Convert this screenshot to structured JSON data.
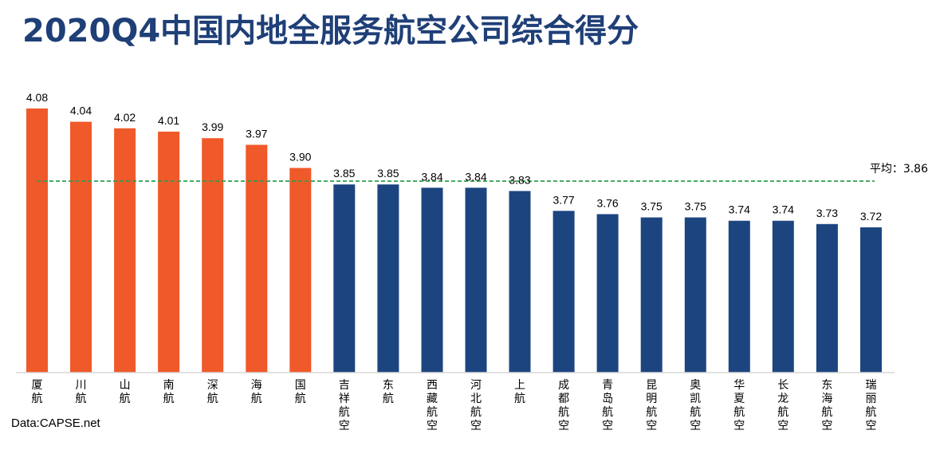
{
  "title": "2020Q4中国内地全服务航空公司综合得分",
  "source": "Data:CAPSE.net",
  "colors": {
    "highlight": "#f0592a",
    "normal": "#1c4580",
    "average_line": "#2e9e4f",
    "title": "#1f3f77"
  },
  "chart_data": {
    "type": "bar",
    "title": "2020Q4中国内地全服务航空公司综合得分",
    "xlabel": "",
    "ylabel": "",
    "categories": [
      "厦航",
      "川航",
      "山航",
      "南航",
      "深航",
      "海航",
      "国航",
      "吉祥航空",
      "东航",
      "西藏航空",
      "河北航空",
      "上航",
      "成都航空",
      "青岛航空",
      "昆明航空",
      "奥凯航空",
      "华夏航空",
      "长龙航空",
      "东海航空",
      "瑞丽航空"
    ],
    "values": [
      4.08,
      4.04,
      4.02,
      4.01,
      3.99,
      3.97,
      3.9,
      3.85,
      3.85,
      3.84,
      3.84,
      3.83,
      3.77,
      3.76,
      3.75,
      3.75,
      3.74,
      3.74,
      3.73,
      3.72
    ],
    "value_labels": [
      "4.08",
      "4.04",
      "4.02",
      "4.01",
      "3.99",
      "3.97",
      "3.90",
      "3.85",
      "3.85",
      "3.84",
      "3.84",
      "3.83",
      "3.77",
      "3.76",
      "3.75",
      "3.75",
      "3.74",
      "3.74",
      "3.73",
      "3.72"
    ],
    "highlight_count": 7,
    "average": {
      "label": "平均：3.86",
      "value": 3.86,
      "line_style": "dashed"
    },
    "ylim": [
      3.28,
      4.08
    ],
    "grid": false,
    "legend": "none"
  }
}
